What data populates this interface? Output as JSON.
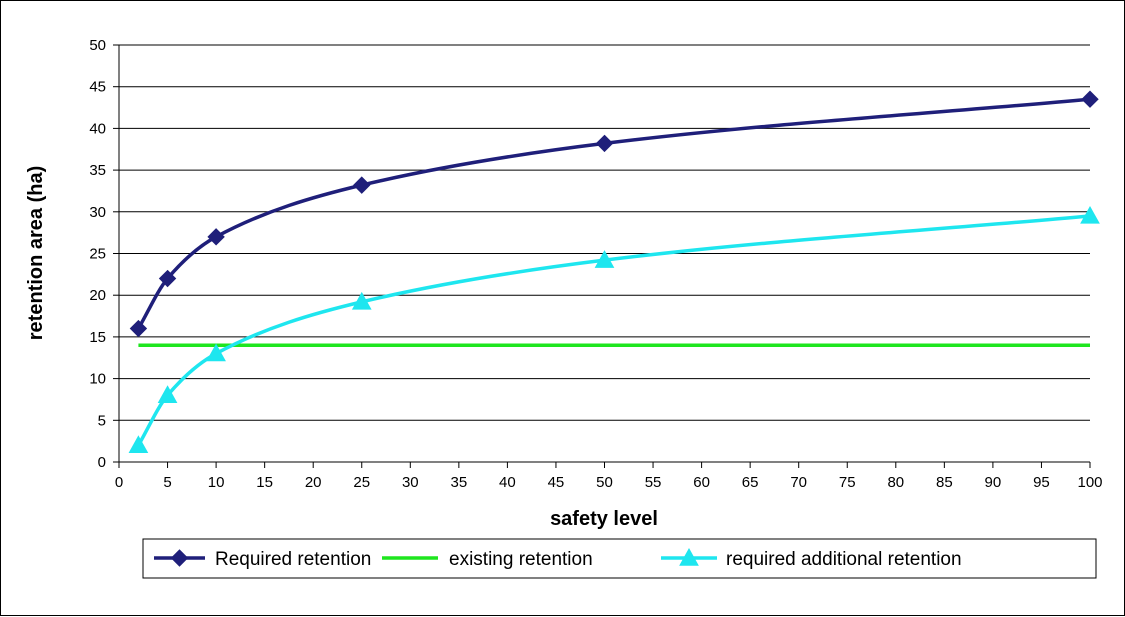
{
  "chart_data": {
    "type": "line",
    "title": "",
    "xlabel": "safety level",
    "ylabel": "retention area (ha)",
    "xlim": [
      0,
      100
    ],
    "ylim": [
      0,
      50
    ],
    "xticks": [
      0,
      5,
      10,
      15,
      20,
      25,
      30,
      35,
      40,
      45,
      50,
      55,
      60,
      65,
      70,
      75,
      80,
      85,
      90,
      95,
      100
    ],
    "yticks": [
      0,
      5,
      10,
      15,
      20,
      25,
      30,
      35,
      40,
      45,
      50
    ],
    "grid": "horizontal",
    "legend_position": "bottom",
    "series": [
      {
        "name": "Required retention",
        "color": "#1f1f7a",
        "marker": "diamond",
        "points": [
          [
            2,
            16
          ],
          [
            5,
            22
          ],
          [
            10,
            27
          ],
          [
            25,
            33.2
          ],
          [
            50,
            38.2
          ],
          [
            100,
            43.5
          ]
        ]
      },
      {
        "name": "existing retention",
        "color": "#1ee61e",
        "marker": "none",
        "points": [
          [
            2,
            14
          ],
          [
            100,
            14
          ]
        ]
      },
      {
        "name": "required additional retention",
        "color": "#1ee6ef",
        "marker": "triangle",
        "points": [
          [
            2,
            2
          ],
          [
            5,
            8
          ],
          [
            10,
            13
          ],
          [
            25,
            19.2
          ],
          [
            50,
            24.2
          ],
          [
            100,
            29.5
          ]
        ]
      }
    ]
  }
}
